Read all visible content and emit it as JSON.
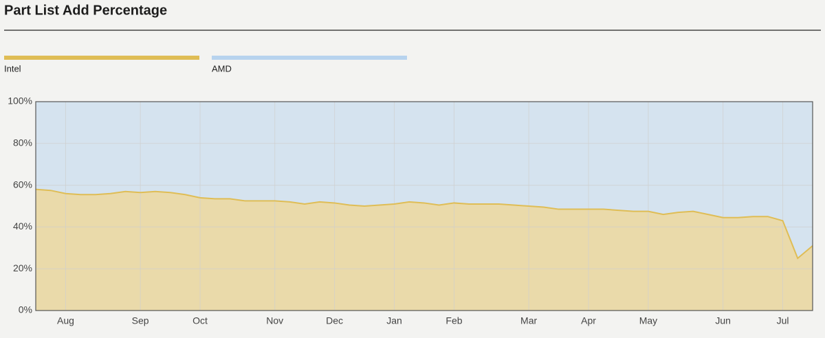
{
  "chart_data": {
    "type": "area",
    "title": "Part List Add Percentage",
    "categories": [
      null,
      null,
      "Aug",
      null,
      null,
      null,
      null,
      "Sep",
      null,
      null,
      null,
      "Oct",
      null,
      null,
      null,
      null,
      "Nov",
      null,
      null,
      null,
      "Dec",
      null,
      null,
      null,
      "Jan",
      null,
      null,
      null,
      "Feb",
      null,
      null,
      null,
      null,
      "Mar",
      null,
      null,
      null,
      "Apr",
      null,
      null,
      null,
      "May",
      null,
      null,
      null,
      null,
      "Jun",
      null,
      null,
      null,
      "Jul",
      null,
      null
    ],
    "series": [
      {
        "name": "Intel",
        "color": "#dfbd55",
        "values": [
          58,
          57.5,
          56,
          55.5,
          55.5,
          56,
          57,
          56.5,
          57,
          56.5,
          55.5,
          54,
          53.5,
          53.5,
          52.5,
          52.5,
          52.5,
          52,
          51,
          52,
          51.5,
          50.5,
          50,
          50.5,
          51,
          52,
          51.5,
          50.5,
          51.5,
          51,
          51,
          51,
          50.5,
          50,
          49.5,
          48.5,
          48.5,
          48.5,
          48.5,
          48,
          47.5,
          47.5,
          46,
          47,
          47.5,
          46,
          44.5,
          44.5,
          45,
          45,
          43,
          25,
          31
        ]
      },
      {
        "name": "AMD",
        "color": "#b7d3ee",
        "values": [
          42,
          42.5,
          44,
          44.5,
          44.5,
          44,
          43,
          43.5,
          43,
          43.5,
          44.5,
          46,
          46.5,
          46.5,
          47.5,
          47.5,
          47.5,
          48,
          49,
          48,
          48.5,
          49.5,
          50,
          49.5,
          49,
          48,
          48.5,
          49.5,
          48.5,
          49,
          49,
          49,
          49.5,
          50,
          50.5,
          51.5,
          51.5,
          51.5,
          51.5,
          52,
          52.5,
          52.5,
          54,
          53,
          52.5,
          54,
          55.5,
          55.5,
          55,
          55,
          57,
          75,
          69
        ]
      }
    ],
    "ylim": [
      0,
      100
    ],
    "yticks": [
      {
        "value": 0,
        "label": "0%"
      },
      {
        "value": 20,
        "label": "20%"
      },
      {
        "value": 40,
        "label": "40%"
      },
      {
        "value": 60,
        "label": "60%"
      },
      {
        "value": 80,
        "label": "80%"
      },
      {
        "value": 100,
        "label": "100%"
      }
    ],
    "grid": true,
    "stacked": true
  }
}
